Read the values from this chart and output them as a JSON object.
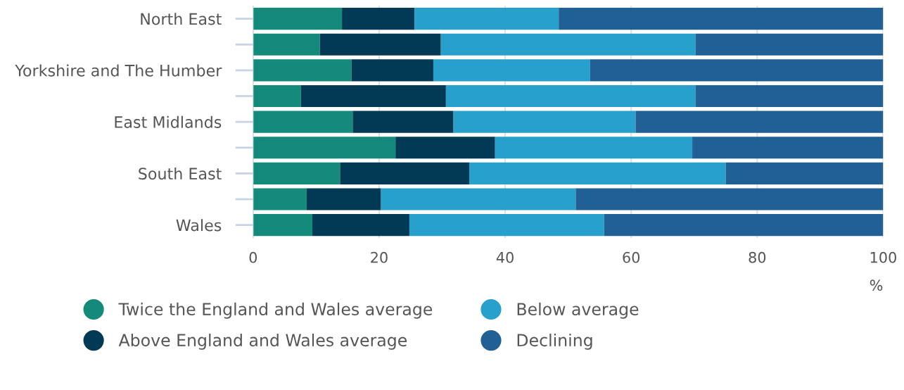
{
  "chart_data": {
    "type": "bar",
    "orientation": "horizontal",
    "stacked": true,
    "categories": [
      "North East",
      null,
      "Yorkshire and The Humber",
      null,
      "East Midlands",
      null,
      "South East",
      null,
      "Wales"
    ],
    "series": [
      {
        "name": "Twice the England and Wales average",
        "color": "#138a7a",
        "values": [
          14.1,
          10.6,
          15.6,
          7.6,
          15.8,
          22.6,
          13.8,
          8.5,
          9.4
        ]
      },
      {
        "name": "Above England and Wales average",
        "color": "#023a55",
        "values": [
          11.5,
          19.2,
          13.0,
          23.0,
          16.0,
          15.8,
          20.5,
          11.8,
          15.4
        ]
      },
      {
        "name": "Below average",
        "color": "#28a0cc",
        "values": [
          22.9,
          40.4,
          24.9,
          39.6,
          28.9,
          31.3,
          40.7,
          30.9,
          30.9
        ]
      },
      {
        "name": "Declining",
        "color": "#206095",
        "values": [
          51.5,
          29.8,
          46.5,
          29.8,
          39.3,
          30.3,
          25.0,
          48.8,
          44.3
        ]
      }
    ],
    "xlim": [
      0,
      100
    ],
    "xticks": [
      0,
      20,
      40,
      60,
      80,
      100
    ],
    "xlabel": "%",
    "grid": "x",
    "legend": "bottom",
    "marker": "circle"
  }
}
